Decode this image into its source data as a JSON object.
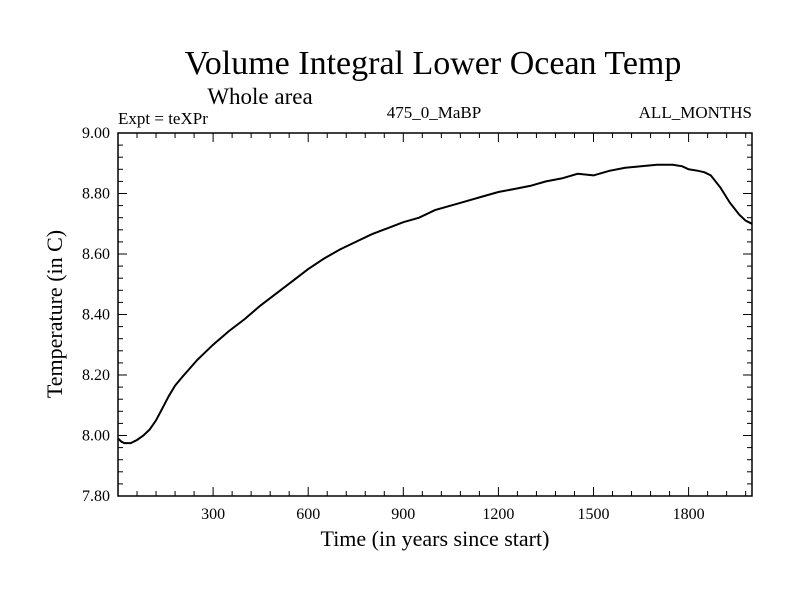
{
  "chart_data": {
    "type": "line",
    "title": "Volume Integral Lower Ocean Temp",
    "subtitle": "Whole area",
    "left_label": "Expt = teXPr",
    "center_label": "475_0_MaBP",
    "right_label": "ALL_MONTHS",
    "xlabel": "Time (in years since start)",
    "ylabel": "Temperature (in C)",
    "xlim": [
      0,
      2000
    ],
    "ylim": [
      7.8,
      9.0
    ],
    "x_ticks": [
      300,
      600,
      900,
      1200,
      1500,
      1800
    ],
    "y_ticks": [
      "7.80",
      "8.00",
      "8.20",
      "8.40",
      "8.60",
      "8.80",
      "9.00"
    ],
    "grid": false,
    "series": [
      {
        "x": [
          0,
          10,
          20,
          40,
          60,
          80,
          100,
          120,
          140,
          160,
          180,
          200,
          250,
          300,
          350,
          400,
          450,
          500,
          550,
          600,
          650,
          700,
          750,
          800,
          850,
          900,
          950,
          1000,
          1050,
          1100,
          1150,
          1200,
          1250,
          1300,
          1350,
          1400,
          1450,
          1500,
          1550,
          1600,
          1650,
          1700,
          1750,
          1780,
          1800,
          1830,
          1850,
          1870,
          1900,
          1930,
          1960,
          1980,
          2000
        ],
        "y": [
          7.99,
          7.98,
          7.975,
          7.975,
          7.985,
          8.0,
          8.02,
          8.05,
          8.09,
          8.13,
          8.165,
          8.19,
          8.25,
          8.3,
          8.345,
          8.385,
          8.43,
          8.47,
          8.51,
          8.55,
          8.585,
          8.615,
          8.64,
          8.665,
          8.685,
          8.705,
          8.72,
          8.745,
          8.76,
          8.775,
          8.79,
          8.805,
          8.815,
          8.825,
          8.84,
          8.85,
          8.865,
          8.86,
          8.875,
          8.885,
          8.89,
          8.895,
          8.895,
          8.89,
          8.88,
          8.875,
          8.87,
          8.86,
          8.82,
          8.77,
          8.73,
          8.71,
          8.7
        ]
      }
    ]
  }
}
